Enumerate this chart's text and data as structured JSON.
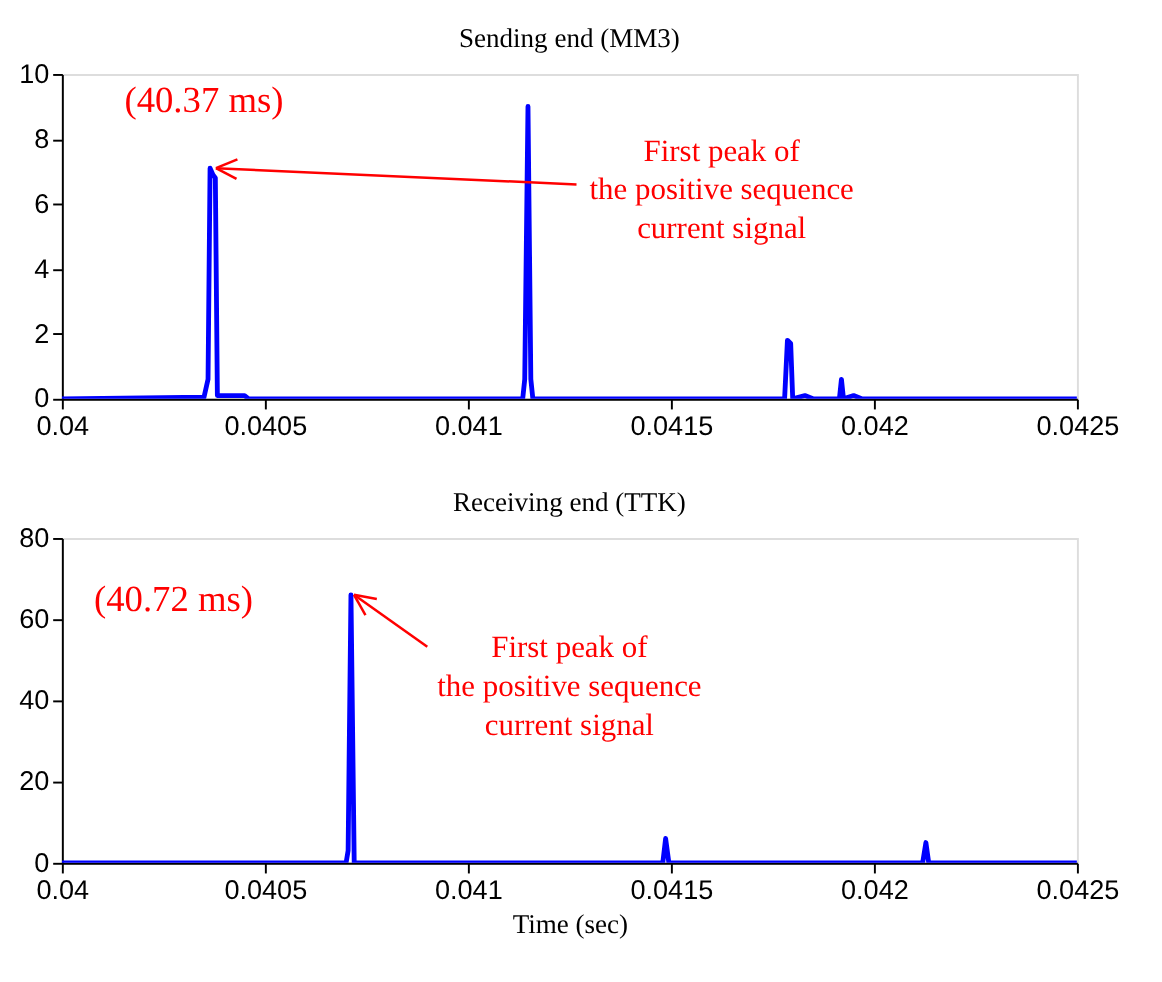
{
  "chart_data": [
    {
      "type": "line",
      "title": "Sending end (MM3)",
      "grid": false,
      "x": [
        0.04,
        0.04035,
        0.04036,
        0.040365,
        0.040372,
        0.040378,
        0.040383,
        0.04045,
        0.04046,
        0.041135,
        0.04114,
        0.041148,
        0.041155,
        0.04116,
        0.04178,
        0.041787,
        0.041795,
        0.0418,
        0.04183,
        0.04185,
        0.041915,
        0.04192,
        0.041925,
        0.04195,
        0.04197,
        0.0425
      ],
      "series": [
        {
          "color": "#0000ff",
          "values": [
            0,
            0.05,
            0.6,
            7.1,
            6.9,
            6.8,
            0.1,
            0.1,
            0,
            0,
            0.6,
            9.0,
            0.6,
            0,
            0,
            1.8,
            1.7,
            0,
            0.1,
            0,
            0,
            0.6,
            0,
            0.1,
            0,
            0
          ]
        }
      ],
      "xlim": [
        0.04,
        0.0425
      ],
      "xticks": [
        0.04,
        0.0405,
        0.041,
        0.0415,
        0.042,
        0.0425
      ],
      "ylim": [
        0,
        10
      ],
      "yticks": [
        0,
        2,
        4,
        6,
        8,
        10
      ],
      "annotations": [
        "(40.37 ms)",
        {
          "text": "First peak of\nthe positive sequence\ncurrent signal",
          "x": 0.040372,
          "y": 7.1
        }
      ]
    },
    {
      "type": "line",
      "title": "Receiving end (TTK)",
      "xlabel": "Time (sec)",
      "grid": false,
      "x": [
        0.04,
        0.0407,
        0.040705,
        0.040712,
        0.04072,
        0.04148,
        0.041487,
        0.041495,
        0.04212,
        0.042128,
        0.042135,
        0.0425
      ],
      "series": [
        {
          "color": "#0000ff",
          "values": [
            0,
            0,
            3,
            66,
            0,
            0,
            6,
            0,
            0,
            5,
            0,
            0
          ]
        }
      ],
      "xlim": [
        0.04,
        0.0425
      ],
      "xticks": [
        0.04,
        0.0405,
        0.041,
        0.0415,
        0.042,
        0.0425
      ],
      "ylim": [
        0,
        80
      ],
      "yticks": [
        0,
        20,
        40,
        60,
        80
      ],
      "annotations": [
        "(40.72 ms)",
        {
          "text": "First peak of\nthe positive sequence\ncurrent signal",
          "x": 0.040712,
          "y": 66
        }
      ]
    }
  ]
}
